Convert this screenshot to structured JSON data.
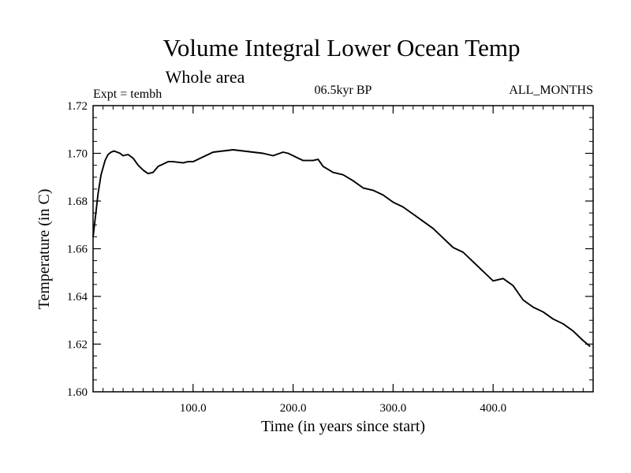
{
  "chart_data": {
    "type": "line",
    "title": "Volume Integral Lower Ocean Temp",
    "subtitle": "Whole area",
    "expt_label": "Expt = tembh",
    "period_label": "06.5kyr BP",
    "months_label": "ALL_MONTHS",
    "xlabel": "Time (in years since start)",
    "ylabel": "Temperature (in C)",
    "xlim": [
      0,
      500
    ],
    "ylim": [
      1.6,
      1.72
    ],
    "x_ticks": [
      {
        "value": 100,
        "label": "100.0"
      },
      {
        "value": 200,
        "label": "200.0"
      },
      {
        "value": 300,
        "label": "300.0"
      },
      {
        "value": 400,
        "label": "400.0"
      }
    ],
    "y_ticks": [
      {
        "value": 1.6,
        "label": "1.60"
      },
      {
        "value": 1.62,
        "label": "1.62"
      },
      {
        "value": 1.64,
        "label": "1.64"
      },
      {
        "value": 1.66,
        "label": "1.66"
      },
      {
        "value": 1.68,
        "label": "1.68"
      },
      {
        "value": 1.7,
        "label": "1.70"
      },
      {
        "value": 1.72,
        "label": "1.72"
      }
    ],
    "series": [
      {
        "name": "Temperature",
        "color": "#000000",
        "x": [
          0,
          2,
          5,
          8,
          12,
          15,
          18,
          21,
          24,
          27,
          30,
          35,
          40,
          45,
          50,
          55,
          60,
          65,
          70,
          75,
          80,
          90,
          95,
          100,
          110,
          120,
          130,
          140,
          150,
          160,
          170,
          180,
          190,
          195,
          200,
          205,
          210,
          215,
          220,
          225,
          230,
          240,
          250,
          260,
          270,
          280,
          290,
          300,
          310,
          320,
          330,
          340,
          350,
          360,
          370,
          380,
          390,
          400,
          410,
          420,
          430,
          440,
          450,
          460,
          470,
          480,
          490,
          497
        ],
        "values": [
          1.665,
          1.672,
          1.683,
          1.691,
          1.697,
          1.6995,
          1.7005,
          1.701,
          1.7005,
          1.7,
          1.699,
          1.6995,
          1.698,
          1.695,
          1.693,
          1.6915,
          1.692,
          1.6945,
          1.6955,
          1.6965,
          1.6965,
          1.696,
          1.6965,
          1.6965,
          1.6985,
          1.7005,
          1.701,
          1.7015,
          1.701,
          1.7005,
          1.7,
          1.699,
          1.7005,
          1.7,
          1.699,
          1.698,
          1.697,
          1.697,
          1.697,
          1.6975,
          1.6945,
          1.692,
          1.691,
          1.6885,
          1.6855,
          1.6845,
          1.6825,
          1.6795,
          1.6775,
          1.6745,
          1.6715,
          1.6685,
          1.6645,
          1.6605,
          1.6585,
          1.6545,
          1.6505,
          1.6465,
          1.6475,
          1.6445,
          1.6385,
          1.6355,
          1.6335,
          1.6305,
          1.6285,
          1.6255,
          1.6215,
          1.619
        ]
      }
    ]
  }
}
